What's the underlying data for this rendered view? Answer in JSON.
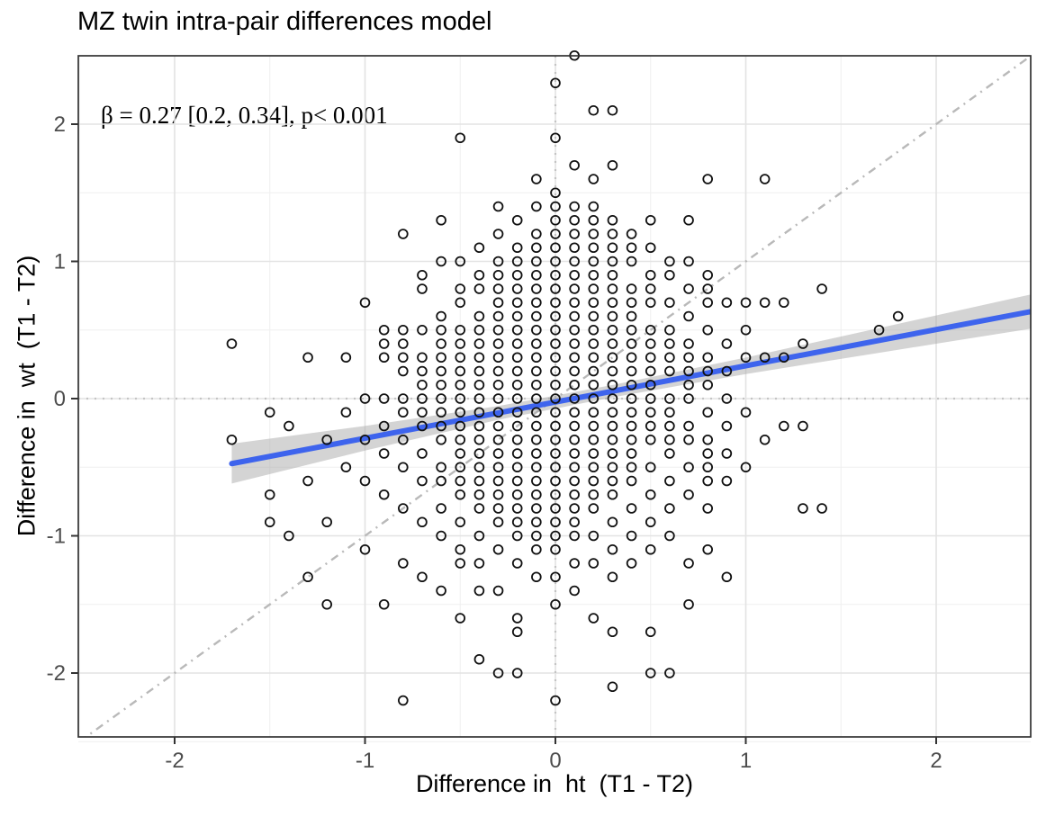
{
  "chart_data": {
    "type": "scatter",
    "title": "MZ twin intra-pair differences model",
    "annotation": "β = 0.27 [0.2, 0.34], p< 0.001",
    "xlabel": "Difference in  ht  (T1 - T2)",
    "ylabel": "Difference in  wt  (T1 - T2)",
    "xlim": [
      -2.5,
      2.5
    ],
    "ylim": [
      -2.5,
      2.5
    ],
    "x_ticks": [
      -2,
      -1,
      0,
      1,
      2
    ],
    "y_ticks": [
      -2,
      -1,
      0,
      1,
      2
    ],
    "minor_gridlines": [
      -2.5,
      -1.5,
      -0.5,
      0.5,
      1.5,
      2.5
    ],
    "grid": true,
    "legend": "none",
    "reference_lines": {
      "identity_line": {
        "style": "dash-dot",
        "from": [
          -2.5,
          -2.5
        ],
        "to": [
          2.5,
          2.5
        ]
      },
      "zero_x": {
        "style": "dotted",
        "value": 0
      },
      "zero_y": {
        "style": "dotted",
        "value": 0
      }
    },
    "regression": {
      "beta": 0.27,
      "ci_low": 0.2,
      "ci_high": 0.34,
      "p_value": "< 0.001",
      "slope": 0.264,
      "intercept": -0.025,
      "x_start": -1.7,
      "x_end": 2.51
    },
    "ci_band": {
      "x": [
        -1.7,
        -1.0,
        -0.3,
        0.3,
        1.0,
        1.7,
        2.51
      ],
      "half_width": [
        0.145,
        0.09,
        0.05,
        0.045,
        0.06,
        0.09,
        0.125
      ]
    },
    "colors": {
      "regression_line": "#3e64ed",
      "ci_band": "rgba(160,160,160,0.45)",
      "point_stroke": "#111111",
      "major_grid": "#e3e3e3",
      "minor_grid": "#efefef",
      "panel_border": "#333333",
      "tick_mark": "#333333",
      "tick_label": "#4d4d4d",
      "identity_line": "#b9b9b9",
      "zero_dotted": "#c4c4c4"
    },
    "points_columns": [
      [
        -1.7,
        [
          0.4,
          -0.3
        ]
      ],
      [
        -1.5,
        [
          -0.1,
          -0.7,
          -0.9
        ]
      ],
      [
        -1.4,
        [
          -0.2,
          -1.0
        ]
      ],
      [
        -1.3,
        [
          0.3,
          -0.6,
          -1.3
        ]
      ],
      [
        -1.2,
        [
          -0.3,
          -0.9,
          -1.5
        ]
      ],
      [
        -1.1,
        [
          0.3,
          -0.1,
          -0.5
        ]
      ],
      [
        -1.0,
        [
          0.7,
          0.0,
          -0.3,
          -0.6,
          -1.1
        ]
      ],
      [
        -0.9,
        [
          0.5,
          0.4,
          0.3,
          0.0,
          -0.2,
          -0.4,
          -0.7,
          -1.5
        ]
      ],
      [
        -0.8,
        [
          1.2,
          0.5,
          0.4,
          0.3,
          0.2,
          0.0,
          -0.1,
          -0.3,
          -0.5,
          -0.8,
          -1.2,
          -2.2
        ]
      ],
      [
        -0.7,
        [
          0.9,
          0.8,
          0.5,
          0.3,
          0.2,
          0.1,
          0.0,
          -0.1,
          -0.2,
          -0.4,
          -0.6,
          -0.9,
          -1.3
        ]
      ],
      [
        -0.6,
        [
          1.3,
          1.0,
          0.6,
          0.5,
          0.4,
          0.3,
          0.2,
          0.1,
          0.0,
          -0.1,
          -0.2,
          -0.3,
          -0.5,
          -0.6,
          -0.8,
          -1.0,
          -1.4
        ]
      ],
      [
        -0.5,
        [
          1.9,
          1.0,
          0.8,
          0.7,
          0.5,
          0.4,
          0.3,
          0.2,
          0.1,
          0.0,
          -0.1,
          -0.2,
          -0.3,
          -0.4,
          -0.5,
          -0.6,
          -0.7,
          -0.9,
          -1.1,
          -1.2,
          -1.6
        ]
      ],
      [
        -0.4,
        [
          1.1,
          0.9,
          0.8,
          0.6,
          0.5,
          0.4,
          0.3,
          0.2,
          0.1,
          0.0,
          -0.1,
          -0.2,
          -0.3,
          -0.4,
          -0.5,
          -0.6,
          -0.7,
          -0.8,
          -1.0,
          -1.2,
          -1.4,
          -1.9
        ]
      ],
      [
        -0.3,
        [
          1.4,
          1.2,
          1.0,
          0.9,
          0.8,
          0.7,
          0.6,
          0.5,
          0.4,
          0.3,
          0.2,
          0.1,
          0.0,
          -0.1,
          -0.2,
          -0.3,
          -0.4,
          -0.5,
          -0.6,
          -0.7,
          -0.8,
          -0.9,
          -1.1,
          -1.4,
          -2.0
        ]
      ],
      [
        -0.2,
        [
          1.3,
          1.1,
          1.0,
          0.9,
          0.8,
          0.7,
          0.6,
          0.5,
          0.4,
          0.3,
          0.2,
          0.1,
          0.0,
          -0.1,
          -0.2,
          -0.3,
          -0.4,
          -0.5,
          -0.6,
          -0.7,
          -0.8,
          -0.9,
          -1.0,
          -1.2,
          -1.6,
          -1.7,
          -2.0
        ]
      ],
      [
        -0.1,
        [
          1.6,
          1.4,
          1.2,
          1.1,
          1.0,
          0.9,
          0.8,
          0.7,
          0.6,
          0.5,
          0.4,
          0.3,
          0.2,
          0.1,
          0.0,
          -0.1,
          -0.2,
          -0.3,
          -0.4,
          -0.5,
          -0.6,
          -0.7,
          -0.8,
          -0.9,
          -1.0,
          -1.1,
          -1.3
        ]
      ],
      [
        0.0,
        [
          2.3,
          1.9,
          1.5,
          1.4,
          1.3,
          1.2,
          1.1,
          1.0,
          0.9,
          0.8,
          0.7,
          0.6,
          0.5,
          0.4,
          0.3,
          0.2,
          0.1,
          0.0,
          -0.1,
          -0.2,
          -0.3,
          -0.4,
          -0.5,
          -0.6,
          -0.7,
          -0.8,
          -0.9,
          -1.0,
          -1.1,
          -1.3,
          -1.5,
          -2.2
        ]
      ],
      [
        0.1,
        [
          2.5,
          1.7,
          1.4,
          1.3,
          1.2,
          1.1,
          1.0,
          0.9,
          0.8,
          0.7,
          0.6,
          0.5,
          0.4,
          0.3,
          0.2,
          0.1,
          0.0,
          -0.1,
          -0.2,
          -0.3,
          -0.4,
          -0.5,
          -0.6,
          -0.7,
          -0.8,
          -0.9,
          -1.0,
          -1.2,
          -1.4
        ]
      ],
      [
        0.2,
        [
          2.1,
          1.6,
          1.4,
          1.3,
          1.2,
          1.1,
          1.0,
          0.9,
          0.8,
          0.7,
          0.6,
          0.5,
          0.4,
          0.3,
          0.2,
          0.1,
          0.0,
          -0.1,
          -0.2,
          -0.3,
          -0.4,
          -0.5,
          -0.6,
          -0.7,
          -0.8,
          -1.0,
          -1.2,
          -1.6
        ]
      ],
      [
        0.3,
        [
          2.1,
          1.7,
          1.3,
          1.2,
          1.1,
          1.0,
          0.9,
          0.8,
          0.7,
          0.6,
          0.5,
          0.4,
          0.3,
          0.2,
          0.1,
          0.0,
          -0.1,
          -0.2,
          -0.3,
          -0.4,
          -0.5,
          -0.6,
          -0.7,
          -0.9,
          -1.1,
          -1.3,
          -1.7,
          -2.1
        ]
      ],
      [
        0.4,
        [
          1.2,
          1.1,
          1.0,
          0.8,
          0.7,
          0.6,
          0.5,
          0.4,
          0.3,
          0.2,
          0.1,
          0.0,
          -0.1,
          -0.2,
          -0.3,
          -0.4,
          -0.5,
          -0.6,
          -0.8,
          -1.0,
          -1.2
        ]
      ],
      [
        0.5,
        [
          1.3,
          1.1,
          0.9,
          0.8,
          0.7,
          0.5,
          0.4,
          0.3,
          0.2,
          0.1,
          0.0,
          -0.1,
          -0.2,
          -0.3,
          -0.5,
          -0.7,
          -0.9,
          -1.1,
          -1.7,
          -2.0
        ]
      ],
      [
        0.6,
        [
          1.0,
          0.9,
          0.7,
          0.5,
          0.4,
          0.3,
          0.2,
          0.0,
          -0.1,
          -0.2,
          -0.3,
          -0.4,
          -0.6,
          -0.8,
          -1.0,
          -2.0
        ]
      ],
      [
        0.7,
        [
          1.3,
          1.0,
          0.8,
          0.6,
          0.4,
          0.3,
          0.2,
          0.1,
          0.0,
          -0.2,
          -0.3,
          -0.5,
          -0.7,
          -1.2,
          -1.5
        ]
      ],
      [
        0.8,
        [
          1.6,
          0.9,
          0.8,
          0.7,
          0.5,
          0.3,
          0.2,
          0.1,
          -0.1,
          -0.3,
          -0.4,
          -0.5,
          -0.6,
          -0.8,
          -1.1
        ]
      ],
      [
        0.9,
        [
          0.7,
          0.4,
          0.2,
          0.0,
          -0.2,
          -0.4,
          -0.6,
          -1.3
        ]
      ],
      [
        1.0,
        [
          0.7,
          0.5,
          0.3,
          -0.1,
          -0.5
        ]
      ],
      [
        1.1,
        [
          1.6,
          0.7,
          0.3,
          -0.3
        ]
      ],
      [
        1.2,
        [
          0.7,
          0.3,
          -0.2
        ]
      ],
      [
        1.3,
        [
          0.4,
          -0.2,
          -0.8
        ]
      ],
      [
        1.4,
        [
          0.8,
          -0.8
        ]
      ],
      [
        1.7,
        [
          0.5
        ]
      ],
      [
        1.8,
        [
          0.6
        ]
      ]
    ]
  }
}
